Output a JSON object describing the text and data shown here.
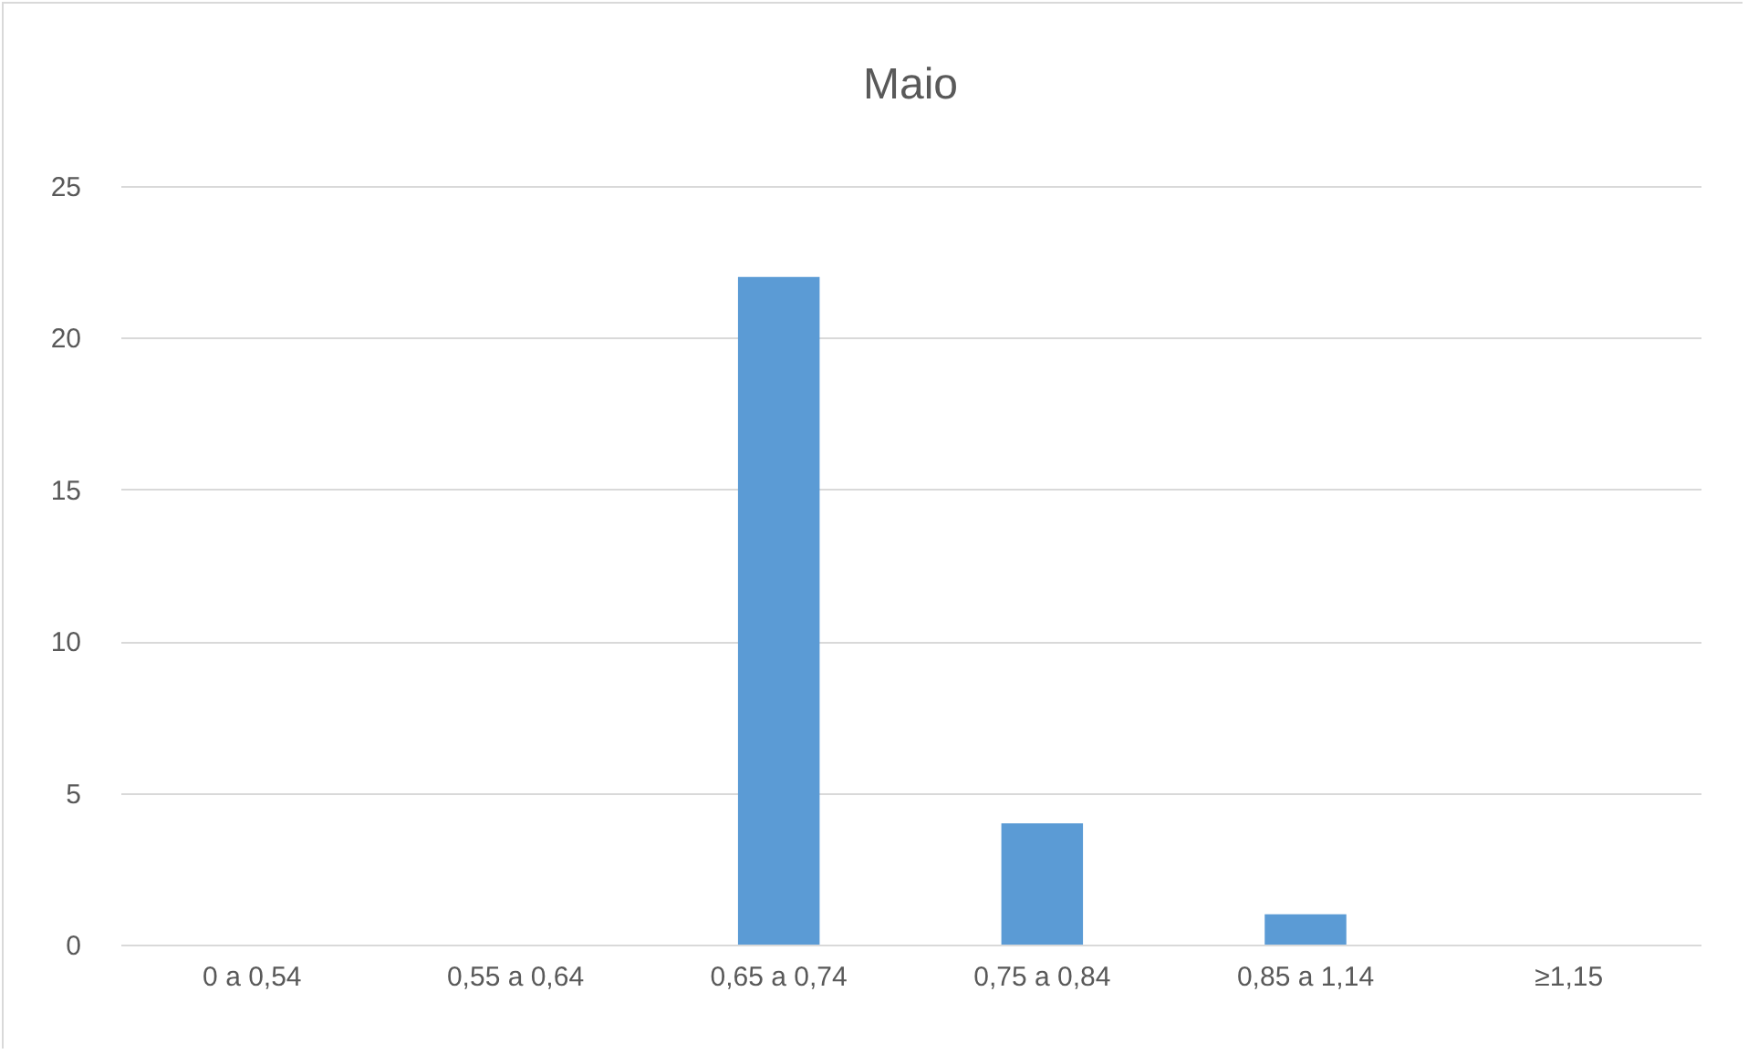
{
  "chart_data": {
    "type": "bar",
    "title": "Maio",
    "categories": [
      "0 a 0,54",
      "0,55 a 0,64",
      "0,65 a 0,74",
      "0,75 a 0,84",
      "0,85 a 1,14",
      "≥1,15"
    ],
    "values": [
      0,
      0,
      22,
      4,
      1,
      0
    ],
    "color": "#5b9bd5",
    "ylim": [
      0,
      25
    ],
    "yticks": [
      0,
      5,
      10,
      15,
      20,
      25
    ],
    "grid": "y"
  }
}
